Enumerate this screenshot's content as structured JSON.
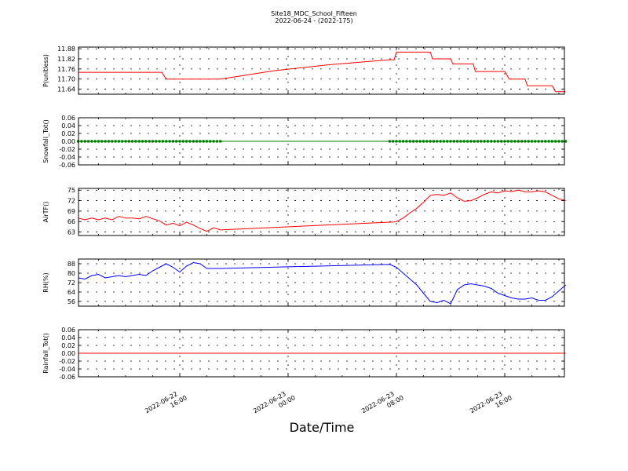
{
  "title": "Site18_MDC_School_Fifteen",
  "subtitle": "2022-06-24 - (2022-175)",
  "xlabel": "Date/Time",
  "x_ticks": [
    {
      "value": "2022-06-22T16:00",
      "line1": "2022-06-22",
      "line2": "16:00"
    },
    {
      "value": "2022-06-23T00:00",
      "line1": "2022-06-23",
      "line2": "00:00"
    },
    {
      "value": "2022-06-23T08:00",
      "line1": "2022-06-23",
      "line2": "08:00"
    },
    {
      "value": "2022-06-23T16:00",
      "line1": "2022-06-23",
      "line2": "16:00"
    }
  ],
  "chart_data": [
    {
      "type": "line",
      "ylabel": "P(unitless)",
      "ylim": [
        11.61,
        11.89
      ],
      "yticks": [
        "11.88",
        "11.82",
        "11.76",
        "11.70",
        "11.64"
      ],
      "color": "#ff0000",
      "grid": true,
      "x": [
        "2022-06-22T08:30",
        "2022-06-22T10:00",
        "2022-06-22T12:00",
        "2022-06-22T14:00",
        "2022-06-22T14:40",
        "2022-06-22T15:00",
        "2022-06-22T15:30",
        "2022-06-22T17:00",
        "2022-06-22T19:00",
        "2022-06-22T23:00",
        "2022-06-23T03:00",
        "2022-06-23T07:30",
        "2022-06-23T07:50",
        "2022-06-23T08:00",
        "2022-06-23T10:30",
        "2022-06-23T10:40",
        "2022-06-23T12:00",
        "2022-06-23T12:10",
        "2022-06-23T13:40",
        "2022-06-23T13:50",
        "2022-06-23T16:00",
        "2022-06-23T16:20",
        "2022-06-23T17:30",
        "2022-06-23T17:40",
        "2022-06-23T19:30",
        "2022-06-23T19:45",
        "2022-06-23T20:30"
      ],
      "y": [
        11.74,
        11.74,
        11.74,
        11.74,
        11.74,
        11.7,
        11.7,
        11.7,
        11.7,
        11.75,
        11.785,
        11.815,
        11.815,
        11.86,
        11.86,
        11.82,
        11.82,
        11.79,
        11.79,
        11.745,
        11.745,
        11.7,
        11.7,
        11.66,
        11.66,
        11.625,
        11.625
      ]
    },
    {
      "type": "scatter",
      "ylabel": "Snowfall_Tot()",
      "ylim": [
        -0.06,
        0.06
      ],
      "yticks": [
        "0.06",
        "0.04",
        "0.02",
        "0.00",
        "-0.02",
        "-0.04",
        "-0.06"
      ],
      "color": "#008000",
      "grid": true,
      "line": {
        "from": "2022-06-22T08:30",
        "to": "2022-06-23T20:30",
        "y": 0.0
      },
      "points": [
        {
          "from": "2022-06-22T08:30",
          "to": "2022-06-22T19:00",
          "step_minutes": 15,
          "y": 0.0
        },
        {
          "from": "2022-06-23T07:30",
          "to": "2022-06-23T20:30",
          "step_minutes": 15,
          "y": 0.0
        }
      ]
    },
    {
      "type": "line",
      "ylabel": "AirTF()",
      "ylim": [
        62,
        75.5
      ],
      "yticks": [
        "75",
        "72",
        "69",
        "66",
        "63"
      ],
      "color": "#ff0000",
      "grid": true,
      "x": [
        "2022-06-22T08:30",
        "2022-06-22T09:00",
        "2022-06-22T09:30",
        "2022-06-22T10:00",
        "2022-06-22T10:30",
        "2022-06-22T11:00",
        "2022-06-22T11:30",
        "2022-06-22T12:00",
        "2022-06-22T12:30",
        "2022-06-22T13:00",
        "2022-06-22T13:30",
        "2022-06-22T14:00",
        "2022-06-22T14:30",
        "2022-06-22T15:00",
        "2022-06-22T15:30",
        "2022-06-22T16:00",
        "2022-06-22T16:30",
        "2022-06-22T17:00",
        "2022-06-22T17:30",
        "2022-06-22T18:00",
        "2022-06-22T18:30",
        "2022-06-22T19:00",
        "2022-06-23T07:50",
        "2022-06-23T08:00",
        "2022-06-23T08:30",
        "2022-06-23T09:00",
        "2022-06-23T09:30",
        "2022-06-23T10:00",
        "2022-06-23T10:30",
        "2022-06-23T11:00",
        "2022-06-23T11:30",
        "2022-06-23T12:00",
        "2022-06-23T12:30",
        "2022-06-23T13:00",
        "2022-06-23T13:30",
        "2022-06-23T14:00",
        "2022-06-23T14:30",
        "2022-06-23T15:00",
        "2022-06-23T15:30",
        "2022-06-23T16:00",
        "2022-06-23T16:30",
        "2022-06-23T17:00",
        "2022-06-23T17:30",
        "2022-06-23T18:00",
        "2022-06-23T18:30",
        "2022-06-23T19:00",
        "2022-06-23T19:30",
        "2022-06-23T20:00",
        "2022-06-23T20:30"
      ],
      "y": [
        67,
        66.5,
        67,
        66.5,
        67,
        66.5,
        67.5,
        67,
        67,
        66.8,
        67.5,
        66.8,
        66.2,
        65,
        65.5,
        64.8,
        65.8,
        65,
        64,
        63.2,
        64.2,
        63.6,
        65.9,
        66.0,
        67.0,
        68.5,
        69.8,
        71.5,
        73.5,
        73.8,
        73.5,
        74.2,
        72.8,
        71.8,
        72.0,
        72.8,
        73.8,
        74.5,
        74.2,
        74.8,
        74.6,
        75.0,
        74.5,
        74.5,
        74.8,
        74.5,
        73.5,
        72.5,
        72.0
      ]
    },
    {
      "type": "line",
      "ylabel": "RH(%)",
      "ylim": [
        52,
        92
      ],
      "yticks": [
        "88",
        "80",
        "72",
        "64",
        "56"
      ],
      "color": "#0000ff",
      "grid": true,
      "x": [
        "2022-06-22T08:30",
        "2022-06-22T09:00",
        "2022-06-22T09:30",
        "2022-06-22T10:00",
        "2022-06-22T10:30",
        "2022-06-22T11:00",
        "2022-06-22T11:30",
        "2022-06-22T12:00",
        "2022-06-22T12:30",
        "2022-06-22T13:00",
        "2022-06-22T13:30",
        "2022-06-22T14:00",
        "2022-06-22T14:30",
        "2022-06-22T15:00",
        "2022-06-22T15:30",
        "2022-06-22T16:00",
        "2022-06-22T16:30",
        "2022-06-22T17:00",
        "2022-06-22T17:30",
        "2022-06-22T18:00",
        "2022-06-22T18:30",
        "2022-06-22T19:00",
        "2022-06-23T07:30",
        "2022-06-23T08:00",
        "2022-06-23T08:30",
        "2022-06-23T09:00",
        "2022-06-23T09:30",
        "2022-06-23T10:00",
        "2022-06-23T10:30",
        "2022-06-23T11:00",
        "2022-06-23T11:30",
        "2022-06-23T12:00",
        "2022-06-23T12:30",
        "2022-06-23T13:00",
        "2022-06-23T13:30",
        "2022-06-23T14:00",
        "2022-06-23T14:30",
        "2022-06-23T15:00",
        "2022-06-23T15:30",
        "2022-06-23T16:00",
        "2022-06-23T16:30",
        "2022-06-23T17:00",
        "2022-06-23T17:30",
        "2022-06-23T18:00",
        "2022-06-23T18:30",
        "2022-06-23T19:00",
        "2022-06-23T19:30",
        "2022-06-23T20:00",
        "2022-06-23T20:30"
      ],
      "y": [
        76,
        75,
        78,
        79,
        76,
        77,
        78,
        77,
        78,
        79,
        78,
        82,
        85,
        88,
        85,
        81,
        86,
        89,
        88,
        84,
        84,
        84,
        87.5,
        85,
        80,
        75,
        70,
        63,
        56,
        55,
        57,
        54,
        66,
        70,
        71,
        70,
        69,
        67,
        63,
        61,
        59,
        58,
        58,
        59,
        57,
        57,
        60,
        65,
        70
      ]
    },
    {
      "type": "line",
      "ylabel": "Rainfall_Tot()",
      "ylim": [
        -0.06,
        0.06
      ],
      "yticks": [
        "0.06",
        "0.04",
        "0.02",
        "0.00",
        "-0.02",
        "-0.04",
        "-0.06"
      ],
      "color": "#ff0000",
      "grid": true,
      "x": [
        "2022-06-22T08:30",
        "2022-06-23T20:30"
      ],
      "y": [
        0.0,
        0.0
      ]
    }
  ]
}
